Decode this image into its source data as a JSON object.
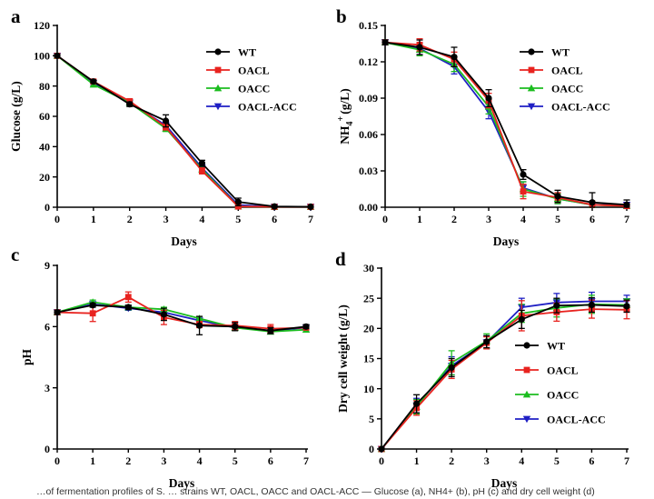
{
  "caption": "…of fermentation profiles of S. … strains WT, OACL, OACC and OACL-ACC — Glucose (a), NH4+ (b), pH (c) and dry cell weight (d)",
  "series_meta": [
    {
      "name": "WT",
      "color": "#000000",
      "marker": "circle"
    },
    {
      "name": "OACL",
      "color": "#e8231f",
      "marker": "square"
    },
    {
      "name": "OACC",
      "color": "#1bbd1f",
      "marker": "triangle-up"
    },
    {
      "name": "OACL-ACC",
      "color": "#1f1fc4",
      "marker": "triangle-down"
    }
  ],
  "chart_data": [
    {
      "panel": "a",
      "type": "line",
      "title": "",
      "xlabel": "Days",
      "ylabel": "Glucose (g/L)",
      "x": [
        0,
        1,
        2,
        3,
        4,
        5,
        6,
        7
      ],
      "xlim": [
        0,
        7
      ],
      "ylim": [
        0,
        120
      ],
      "xticks": [
        "0",
        "1",
        "2",
        "3",
        "4",
        "5",
        "6",
        "7"
      ],
      "yticks": [
        "0",
        "20",
        "40",
        "60",
        "80",
        "100",
        "120"
      ],
      "legend": "right",
      "series": [
        {
          "name": "WT",
          "values": [
            100,
            83,
            68,
            57,
            29,
            3.5,
            0.5,
            0.3
          ],
          "errors": [
            1,
            1,
            1.5,
            4,
            2,
            2.5,
            0.5,
            0.5
          ]
        },
        {
          "name": "OACL",
          "values": [
            100,
            83,
            70,
            53,
            24,
            0.5,
            0.3,
            0.3
          ],
          "errors": [
            1,
            1,
            1.5,
            2,
            2,
            0.5,
            0.3,
            0.3
          ]
        },
        {
          "name": "OACC",
          "values": [
            100,
            81,
            69,
            52,
            25,
            0.5,
            0.3,
            0.3
          ],
          "errors": [
            1,
            1,
            1.5,
            2,
            2,
            0.5,
            0.3,
            0.3
          ]
        },
        {
          "name": "OACL-ACC",
          "values": [
            100,
            82,
            69,
            54,
            26,
            1.5,
            0.3,
            0.3
          ],
          "errors": [
            1,
            1,
            1.5,
            2,
            2,
            1,
            0.3,
            0.3
          ]
        }
      ]
    },
    {
      "panel": "b",
      "type": "line",
      "title": "",
      "xlabel": "Days",
      "ylabel_main": "NH",
      "ylabel_sub": "4",
      "ylabel_sup": "+",
      "ylabel_tail": "(g/L)",
      "x": [
        0,
        1,
        2,
        3,
        4,
        5,
        6,
        7
      ],
      "xlim": [
        0,
        7
      ],
      "ylim": [
        0,
        0.15
      ],
      "xticks": [
        "0",
        "1",
        "2",
        "3",
        "4",
        "5",
        "6",
        "7"
      ],
      "yticks": [
        "0.00",
        "0.03",
        "0.06",
        "0.09",
        "0.12",
        "0.15"
      ],
      "legend": "right",
      "series": [
        {
          "name": "WT",
          "values": [
            0.136,
            0.132,
            0.124,
            0.09,
            0.027,
            0.009,
            0.004,
            0.002
          ],
          "errors": [
            0.002,
            0.006,
            0.008,
            0.007,
            0.004,
            0.005,
            0.008,
            0.004
          ]
        },
        {
          "name": "OACL",
          "values": [
            0.136,
            0.134,
            0.122,
            0.088,
            0.013,
            0.008,
            0.002,
            0.001
          ],
          "errors": [
            0.002,
            0.005,
            0.006,
            0.006,
            0.006,
            0.004,
            0.003,
            0.002
          ]
        },
        {
          "name": "OACC",
          "values": [
            0.136,
            0.13,
            0.118,
            0.083,
            0.015,
            0.007,
            0.002,
            0.001
          ],
          "errors": [
            0.002,
            0.005,
            0.006,
            0.006,
            0.006,
            0.004,
            0.003,
            0.002
          ]
        },
        {
          "name": "OACL-ACC",
          "values": [
            0.136,
            0.131,
            0.116,
            0.079,
            0.016,
            0.007,
            0.002,
            0.002
          ],
          "errors": [
            0.002,
            0.005,
            0.006,
            0.006,
            0.005,
            0.004,
            0.003,
            0.002
          ]
        }
      ]
    },
    {
      "panel": "c",
      "type": "line",
      "title": "",
      "xlabel": "Days",
      "ylabel": "pH",
      "x": [
        0,
        1,
        2,
        3,
        4,
        5,
        6,
        7
      ],
      "xlim": [
        0,
        7
      ],
      "ylim": [
        0,
        9
      ],
      "xticks": [
        "0",
        "1",
        "2",
        "3",
        "4",
        "5",
        "6",
        "7"
      ],
      "yticks": [
        "0",
        "3",
        "6",
        "9"
      ],
      "legend": "none",
      "series": [
        {
          "name": "WT",
          "values": [
            6.7,
            7.05,
            6.95,
            6.6,
            6.05,
            6.0,
            5.8,
            6.0
          ],
          "errors": [
            0.1,
            0.1,
            0.1,
            0.3,
            0.45,
            0.2,
            0.15,
            0.1
          ]
        },
        {
          "name": "OACL",
          "values": [
            6.7,
            6.65,
            7.45,
            6.45,
            6.1,
            6.05,
            5.9,
            5.95
          ],
          "errors": [
            0.1,
            0.4,
            0.25,
            0.35,
            0.15,
            0.2,
            0.2,
            0.1
          ]
        },
        {
          "name": "OACC",
          "values": [
            6.7,
            7.2,
            6.95,
            6.85,
            6.4,
            5.95,
            5.75,
            5.85
          ],
          "errors": [
            0.1,
            0.1,
            0.1,
            0.1,
            0.1,
            0.1,
            0.1,
            0.1
          ]
        },
        {
          "name": "OACL-ACC",
          "values": [
            6.7,
            7.1,
            6.9,
            6.7,
            6.3,
            5.95,
            5.8,
            5.95
          ],
          "errors": [
            0.1,
            0.1,
            0.1,
            0.1,
            0.1,
            0.1,
            0.1,
            0.1
          ]
        }
      ]
    },
    {
      "panel": "d",
      "type": "line",
      "title": "",
      "xlabel": "Days",
      "ylabel": "Dry cell weight (g/L)",
      "x": [
        0,
        1,
        2,
        3,
        4,
        5,
        6,
        7
      ],
      "xlim": [
        0,
        7
      ],
      "ylim": [
        0,
        30
      ],
      "xticks": [
        "0",
        "1",
        "2",
        "3",
        "4",
        "5",
        "6",
        "7"
      ],
      "yticks": [
        "0",
        "5",
        "10",
        "15",
        "20",
        "25",
        "30"
      ],
      "legend": "right",
      "series": [
        {
          "name": "WT",
          "values": [
            0,
            7.5,
            13.5,
            17.8,
            21.5,
            23.8,
            23.9,
            23.7
          ],
          "errors": [
            0.2,
            1.5,
            1.5,
            1.0,
            1.5,
            1.2,
            1.2,
            1.0
          ]
        },
        {
          "name": "OACL",
          "values": [
            0,
            6.8,
            13.2,
            17.6,
            22.1,
            22.7,
            23.2,
            23.1
          ],
          "errors": [
            0.2,
            1.2,
            1.5,
            1.0,
            2.5,
            1.5,
            1.5,
            1.5
          ]
        },
        {
          "name": "OACC",
          "values": [
            0,
            7.0,
            14.3,
            17.9,
            22.5,
            23.4,
            24.0,
            23.9
          ],
          "errors": [
            0.2,
            1.2,
            2.0,
            1.2,
            1.5,
            1.5,
            1.5,
            1.0
          ]
        },
        {
          "name": "OACL-ACC",
          "values": [
            0,
            7.2,
            13.8,
            17.7,
            23.5,
            24.3,
            24.5,
            24.5
          ],
          "errors": [
            0.2,
            1.2,
            1.5,
            1.0,
            1.5,
            1.5,
            1.5,
            1.0
          ]
        }
      ]
    }
  ]
}
